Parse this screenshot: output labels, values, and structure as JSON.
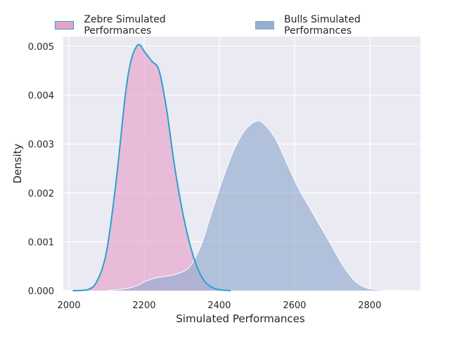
{
  "chart_data": {
    "type": "area",
    "title": "",
    "xlabel": "Simulated Performances",
    "ylabel": "Density",
    "xlim": [
      1985,
      2935
    ],
    "ylim": [
      0,
      0.0052
    ],
    "xticks": [
      2000,
      2200,
      2400,
      2600,
      2800
    ],
    "xtick_labels": [
      "2000",
      "2200",
      "2400",
      "2600",
      "2800"
    ],
    "yticks": [
      0,
      0.001,
      0.002,
      0.003,
      0.004,
      0.005
    ],
    "ytick_labels": [
      "0.000",
      "0.001",
      "0.002",
      "0.003",
      "0.004",
      "0.005"
    ],
    "grid": true,
    "legend_position": "top",
    "series": [
      {
        "name": "Zebre Simulated Performances",
        "fill": "#e7a2c9",
        "line": "#2aa1cf",
        "x": [
          2010,
          2050,
          2075,
          2100,
          2125,
          2150,
          2165,
          2180,
          2190,
          2200,
          2220,
          2240,
          2260,
          2280,
          2300,
          2320,
          2340,
          2360,
          2380,
          2400,
          2430
        ],
        "y": [
          0,
          2e-05,
          0.0002,
          0.0008,
          0.0022,
          0.004,
          0.0047,
          0.005,
          0.00502,
          0.0049,
          0.0047,
          0.0045,
          0.0037,
          0.0026,
          0.0017,
          0.001,
          0.0005,
          0.0002,
          7e-05,
          2e-05,
          0
        ]
      },
      {
        "name": "Bulls Simulated Performances",
        "fill": "#96aed0",
        "line": "#ffffff",
        "x": [
          2100,
          2150,
          2180,
          2200,
          2230,
          2260,
          2290,
          2320,
          2350,
          2380,
          2410,
          2440,
          2470,
          2500,
          2520,
          2550,
          2580,
          2610,
          2640,
          2670,
          2700,
          2730,
          2760,
          2790,
          2820,
          2860,
          2900
        ],
        "y": [
          0,
          4e-05,
          0.0001,
          0.00018,
          0.00026,
          0.0003,
          0.00035,
          0.00048,
          0.0009,
          0.0016,
          0.0023,
          0.0029,
          0.0033,
          0.00347,
          0.0034,
          0.0031,
          0.0026,
          0.0021,
          0.0017,
          0.0013,
          0.0009,
          0.0005,
          0.0002,
          6e-05,
          2e-05,
          5e-06,
          0
        ]
      }
    ]
  }
}
